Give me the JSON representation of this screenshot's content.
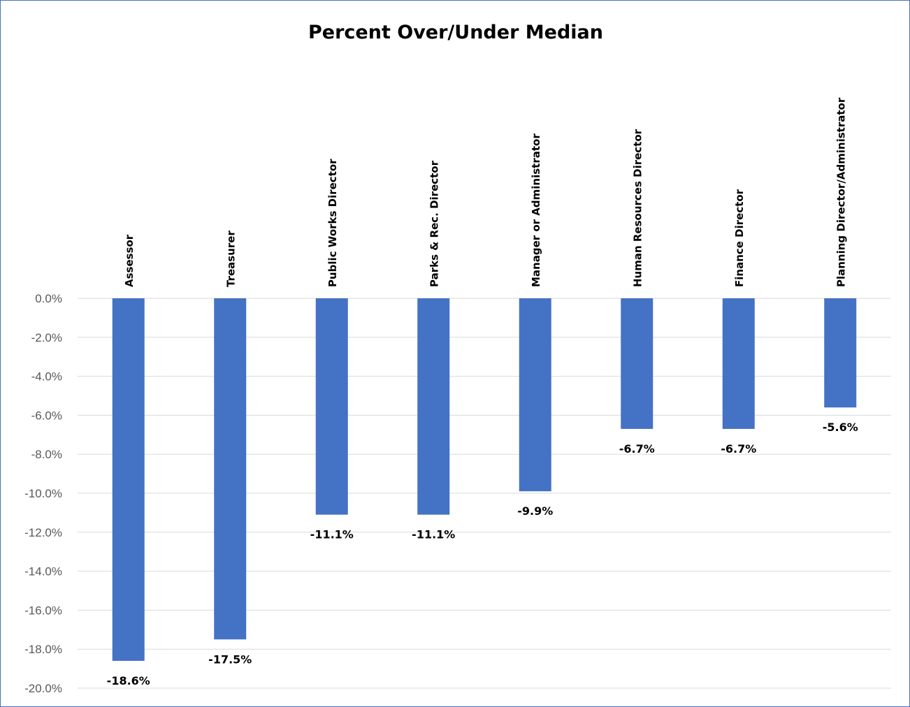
{
  "chart_data": {
    "type": "bar",
    "title": "Percent Over/Under Median",
    "categories": [
      "Assessor",
      "Treasurer",
      "Public Works Director",
      "Parks & Rec. Director",
      "Manager or Administrator",
      "Human Resources Director",
      "Finance Director",
      "Planning Director/Administrator"
    ],
    "values": [
      -18.6,
      -17.5,
      -11.1,
      -11.1,
      -9.9,
      -6.7,
      -6.7,
      -5.6
    ],
    "data_labels": [
      "-18.6%",
      "-17.5%",
      "-11.1%",
      "-11.1%",
      "-9.9%",
      "-6.7%",
      "-6.7%",
      "-5.6%"
    ],
    "ylim": [
      -20,
      0
    ],
    "y_ticks": [
      0,
      -2,
      -4,
      -6,
      -8,
      -10,
      -12,
      -14,
      -16,
      -18,
      -20
    ],
    "y_tick_labels": [
      "0.0%",
      "-2.0%",
      "-4.0%",
      "-6.0%",
      "-8.0%",
      "-10.0%",
      "-12.0%",
      "-14.0%",
      "-16.0%",
      "-18.0%",
      "-20.0%"
    ],
    "xlabel": "",
    "ylabel": "",
    "grid": true,
    "legend": "none",
    "bar_color": "#4472c4",
    "border_color": "#4472c4",
    "category_label_position": "above-zero-line, rotated vertical"
  }
}
